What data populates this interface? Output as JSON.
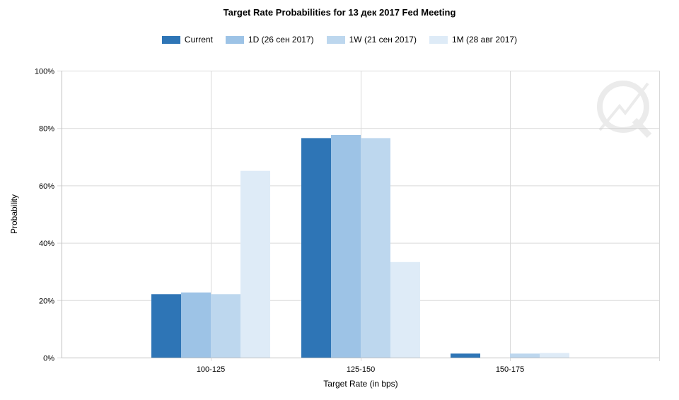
{
  "chart_data": {
    "type": "bar",
    "title": "Target Rate Probabilities for 13 дек 2017 Fed Meeting",
    "xlabel": "Target Rate (in bps)",
    "ylabel": "Probability",
    "categories": [
      "100-125",
      "125-150",
      "150-175"
    ],
    "ylim": [
      0,
      100
    ],
    "yticks": [
      "0%",
      "20%",
      "40%",
      "60%",
      "80%",
      "100%"
    ],
    "grid": true,
    "legend_position": "top",
    "series": [
      {
        "name": "Current",
        "color": "#2e75b6",
        "values": [
          22.1,
          76.5,
          1.4
        ]
      },
      {
        "name": "1D (26 сен 2017)",
        "color": "#9dc3e6",
        "values": [
          22.7,
          77.6,
          0
        ]
      },
      {
        "name": "1W (21 сен 2017)",
        "color": "#bdd7ee",
        "values": [
          22.1,
          76.5,
          1.4
        ]
      },
      {
        "name": "1M (28 авг 2017)",
        "color": "#deebf7",
        "values": [
          65.1,
          33.3,
          1.6
        ]
      }
    ]
  }
}
